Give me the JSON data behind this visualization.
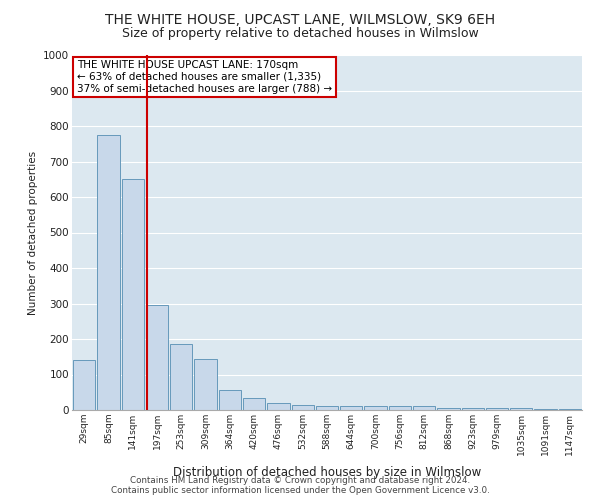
{
  "title_line1": "THE WHITE HOUSE, UPCAST LANE, WILMSLOW, SK9 6EH",
  "title_line2": "Size of property relative to detached houses in Wilmslow",
  "xlabel": "Distribution of detached houses by size in Wilmslow",
  "ylabel": "Number of detached properties",
  "footnote1": "Contains HM Land Registry data © Crown copyright and database right 2024.",
  "footnote2": "Contains public sector information licensed under the Open Government Licence v3.0.",
  "bar_labels": [
    "29sqm",
    "85sqm",
    "141sqm",
    "197sqm",
    "253sqm",
    "309sqm",
    "364sqm",
    "420sqm",
    "476sqm",
    "532sqm",
    "588sqm",
    "644sqm",
    "700sqm",
    "756sqm",
    "812sqm",
    "868sqm",
    "923sqm",
    "979sqm",
    "1035sqm",
    "1091sqm",
    "1147sqm"
  ],
  "bar_values": [
    140,
    775,
    650,
    295,
    185,
    145,
    55,
    35,
    20,
    15,
    10,
    10,
    10,
    10,
    10,
    5,
    5,
    5,
    5,
    3,
    3
  ],
  "bar_color": "#c8d8ea",
  "bar_edgecolor": "#6699bb",
  "vline_x": 2.58,
  "vline_color": "#cc0000",
  "annotation_text": "THE WHITE HOUSE UPCAST LANE: 170sqm\n← 63% of detached houses are smaller (1,335)\n37% of semi-detached houses are larger (788) →",
  "annotation_box_color": "#ffffff",
  "annotation_box_edgecolor": "#cc0000",
  "ylim": [
    0,
    1000
  ],
  "yticks": [
    0,
    100,
    200,
    300,
    400,
    500,
    600,
    700,
    800,
    900,
    1000
  ],
  "plot_background": "#dce8f0",
  "fig_background": "#ffffff",
  "grid_color": "#ffffff",
  "title_fontsize": 10,
  "subtitle_fontsize": 9,
  "annotation_fontsize": 7.5
}
